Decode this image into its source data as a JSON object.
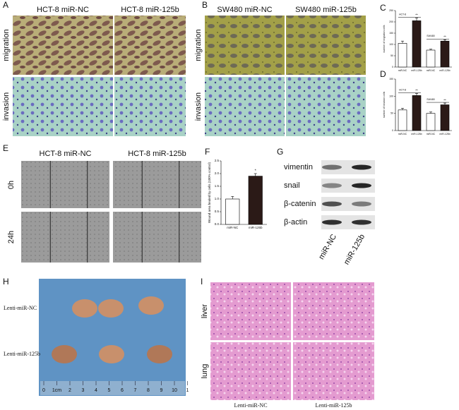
{
  "panels": {
    "A": {
      "label": "A",
      "columns": [
        "HCT-8 miR-NC",
        "HCT-8 miR-125b"
      ],
      "rows": [
        "migration",
        "invasion"
      ]
    },
    "B": {
      "label": "B",
      "columns": [
        "SW480 miR-NC",
        "SW480 miR-125b"
      ],
      "rows": [
        "migration",
        "invasion"
      ]
    },
    "C": {
      "label": "C",
      "chart": {
        "type": "bar",
        "y_label": "number of migration cells",
        "categories": [
          "miR-NC",
          "miR-125b",
          "miR-NC",
          "miR-125b"
        ],
        "groups": [
          "HCT-8",
          "SW480"
        ],
        "values": [
          105,
          205,
          75,
          115
        ],
        "errors": [
          10,
          12,
          4,
          6
        ],
        "colors": [
          "#ffffff",
          "#2b1a17",
          "#ffffff",
          "#2b1a17"
        ],
        "ylim": [
          0,
          250
        ],
        "yticks": [
          0,
          50,
          100,
          150,
          200,
          250
        ],
        "significance": [
          "**",
          "**"
        ]
      }
    },
    "D": {
      "label": "D",
      "chart": {
        "type": "bar",
        "y_label": "number of invasion cells",
        "categories": [
          "miR-NC",
          "miR-125b",
          "miR-NC",
          "miR-125b"
        ],
        "groups": [
          "HCT-8",
          "SW480"
        ],
        "values": [
          60,
          102,
          50,
          75
        ],
        "errors": [
          5,
          6,
          4,
          5
        ],
        "colors": [
          "#ffffff",
          "#2b1a17",
          "#ffffff",
          "#2b1a17"
        ],
        "ylim": [
          0,
          150
        ],
        "yticks": [
          0,
          50,
          100,
          150
        ],
        "significance": [
          "**",
          "**"
        ]
      }
    },
    "E": {
      "label": "E",
      "columns": [
        "HCT-8 miR-NC",
        "HCT-8 miR-125b"
      ],
      "rows": [
        "0h",
        "24h"
      ]
    },
    "F": {
      "label": "F",
      "chart": {
        "type": "bar",
        "y_label": "Wound area healed by cells (100% control)",
        "categories": [
          "miR-NC",
          "miR-125b"
        ],
        "values": [
          1.0,
          1.9
        ],
        "errors": [
          0.1,
          0.1
        ],
        "colors": [
          "#ffffff",
          "#2b1a17"
        ],
        "ylim": [
          0,
          2.5
        ],
        "yticks": [
          {
            "value": 0,
            "label": "0.0"
          },
          {
            "value": 0.5,
            "label": "0.5"
          },
          {
            "value": 1,
            "label": "1.0"
          },
          {
            "value": 1.5,
            "label": "1.5"
          },
          {
            "value": 2,
            "label": "2.0"
          },
          {
            "value": 2.5,
            "label": "2.5"
          }
        ],
        "significance": [
          "*"
        ]
      }
    },
    "G": {
      "label": "G",
      "proteins": [
        "vimentin",
        "snail",
        "β-catenin",
        "β-actin"
      ],
      "lanes": [
        "miR-NC",
        "miR-125b"
      ]
    },
    "H": {
      "label": "H",
      "rows": [
        "Lenti-miR-NC",
        "Lenti-miR-125b"
      ],
      "ruler": [
        "0",
        "1cm",
        "2",
        "3",
        "4",
        "5",
        "6",
        "7",
        "8",
        "9",
        "10",
        "1"
      ]
    },
    "I": {
      "label": "I",
      "rows": [
        "liver",
        "lung"
      ],
      "columns": [
        "Lenti-miR-NC",
        "Lenti-miR-125b"
      ]
    }
  }
}
